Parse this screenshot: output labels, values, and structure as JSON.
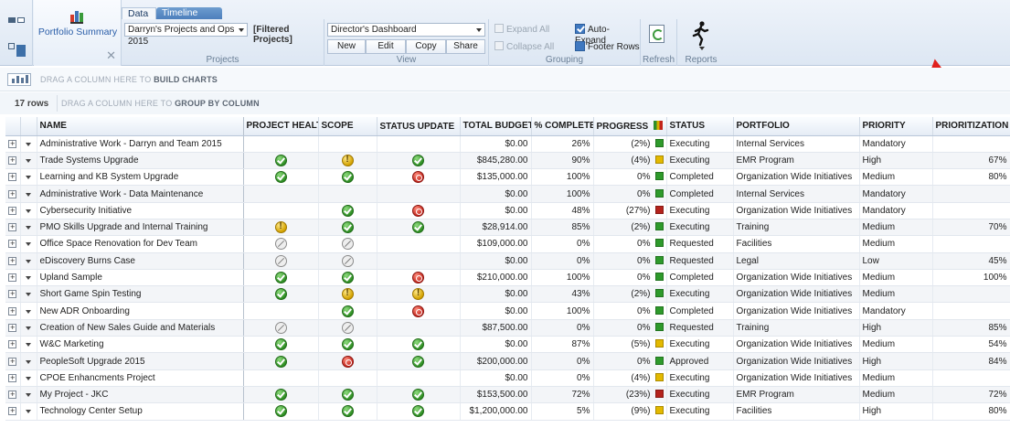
{
  "ribbon": {
    "portfolio_tab_label": "Portfolio Summary",
    "tabs": [
      "Data",
      "Timeline"
    ],
    "project_filter_value": "Darryn's Projects and Ops 2015",
    "filtered_label": "[Filtered Projects]",
    "projects_group_label": "Projects",
    "view_value": "Director's Dashboard",
    "view_buttons": [
      "New",
      "Edit",
      "Copy",
      "Share"
    ],
    "view_group_label": "View",
    "expand_all": "Expand All",
    "collapse_all": "Collapse All",
    "auto_expand": "Auto-Expand",
    "footer_rows": "Footer Rows",
    "grouping_label": "Grouping",
    "refresh_label": "Refresh",
    "reports_label": "Reports"
  },
  "zones": {
    "chart_prefix": "DRAG A COLUMN HERE TO ",
    "chart_bold": "BUILD CHARTS",
    "rows_count": "17 rows",
    "group_prefix": "DRAG A COLUMN HERE TO ",
    "group_bold": "GROUP BY COLUMN"
  },
  "columns": [
    "NAME",
    "PROJECT HEALTH",
    "SCOPE",
    "STATUS UPDATE",
    "TOTAL BUDGET",
    "% COMPLETE",
    "PROGRESS",
    "STATUS",
    "PORTFOLIO",
    "PRIORITY",
    "PRIORITIZATION"
  ],
  "icon_legend": {
    "ok": "check-circle-icon",
    "warn": "warning-circle-icon",
    "stop": "stop-circle-icon",
    "na": "not-applicable-icon"
  },
  "progress_colors": {
    "green": "#2e9a2b",
    "yellow": "#e3b900",
    "red": "#b4231c"
  },
  "rows": [
    {
      "name": "Administrative Work - Darryn and Team 2015",
      "health": "",
      "scope": "",
      "update": "",
      "budget": "$0.00",
      "complete": "26%",
      "progress": "(2%)",
      "pcolor": "green",
      "status": "Executing",
      "portfolio": "Internal Services",
      "priority": "Mandatory",
      "prioritization": ""
    },
    {
      "name": "Trade Systems Upgrade",
      "health": "ok",
      "scope": "warn",
      "update": "ok",
      "budget": "$845,280.00",
      "complete": "90%",
      "progress": "(4%)",
      "pcolor": "yellow",
      "status": "Executing",
      "portfolio": "EMR Program",
      "priority": "High",
      "prioritization": "67%"
    },
    {
      "name": "Learning and KB System Upgrade",
      "health": "ok",
      "scope": "ok",
      "update": "stop",
      "budget": "$135,000.00",
      "complete": "100%",
      "progress": "0%",
      "pcolor": "green",
      "status": "Completed",
      "portfolio": "Organization Wide Initiatives",
      "priority": "Medium",
      "prioritization": "80%"
    },
    {
      "name": "Administrative Work - Data Maintenance",
      "health": "",
      "scope": "",
      "update": "",
      "budget": "$0.00",
      "complete": "100%",
      "progress": "0%",
      "pcolor": "green",
      "status": "Completed",
      "portfolio": "Internal Services",
      "priority": "Mandatory",
      "prioritization": ""
    },
    {
      "name": "Cybersecurity Initiative",
      "health": "",
      "scope": "ok",
      "update": "stop",
      "budget": "$0.00",
      "complete": "48%",
      "progress": "(27%)",
      "pcolor": "red",
      "status": "Executing",
      "portfolio": "Organization Wide Initiatives",
      "priority": "Mandatory",
      "prioritization": ""
    },
    {
      "name": "PMO Skills Upgrade and Internal Training",
      "health": "warn",
      "scope": "ok",
      "update": "ok",
      "budget": "$28,914.00",
      "complete": "85%",
      "progress": "(2%)",
      "pcolor": "green",
      "status": "Executing",
      "portfolio": "Training",
      "priority": "Medium",
      "prioritization": "70%"
    },
    {
      "name": "Office Space Renovation for Dev Team",
      "health": "na",
      "scope": "na",
      "update": "",
      "budget": "$109,000.00",
      "complete": "0%",
      "progress": "0%",
      "pcolor": "green",
      "status": "Requested",
      "portfolio": "Facilities",
      "priority": "Medium",
      "prioritization": ""
    },
    {
      "name": "eDiscovery Burns Case",
      "health": "na",
      "scope": "na",
      "update": "",
      "budget": "$0.00",
      "complete": "0%",
      "progress": "0%",
      "pcolor": "green",
      "status": "Requested",
      "portfolio": "Legal",
      "priority": "Low",
      "prioritization": "45%"
    },
    {
      "name": "Upland Sample",
      "health": "ok",
      "scope": "ok",
      "update": "stop",
      "budget": "$210,000.00",
      "complete": "100%",
      "progress": "0%",
      "pcolor": "green",
      "status": "Completed",
      "portfolio": "Organization Wide Initiatives",
      "priority": "Medium",
      "prioritization": "100%"
    },
    {
      "name": "Short Game Spin Testing",
      "health": "ok",
      "scope": "warn",
      "update": "warn",
      "budget": "$0.00",
      "complete": "43%",
      "progress": "(2%)",
      "pcolor": "green",
      "status": "Executing",
      "portfolio": "Organization Wide Initiatives",
      "priority": "Medium",
      "prioritization": ""
    },
    {
      "name": "New ADR Onboarding",
      "health": "",
      "scope": "ok",
      "update": "stop",
      "budget": "$0.00",
      "complete": "100%",
      "progress": "0%",
      "pcolor": "green",
      "status": "Completed",
      "portfolio": "Organization Wide Initiatives",
      "priority": "Mandatory",
      "prioritization": ""
    },
    {
      "name": "Creation of New Sales Guide and Materials",
      "health": "na",
      "scope": "na",
      "update": "",
      "budget": "$87,500.00",
      "complete": "0%",
      "progress": "0%",
      "pcolor": "green",
      "status": "Requested",
      "portfolio": "Training",
      "priority": "High",
      "prioritization": "85%"
    },
    {
      "name": "W&C Marketing",
      "health": "ok",
      "scope": "ok",
      "update": "ok",
      "budget": "$0.00",
      "complete": "87%",
      "progress": "(5%)",
      "pcolor": "yellow",
      "status": "Executing",
      "portfolio": "Organization Wide Initiatives",
      "priority": "Medium",
      "prioritization": "54%"
    },
    {
      "name": "PeopleSoft Upgrade 2015",
      "health": "ok",
      "scope": "stop",
      "update": "ok",
      "budget": "$200,000.00",
      "complete": "0%",
      "progress": "0%",
      "pcolor": "green",
      "status": "Approved",
      "portfolio": "Organization Wide Initiatives",
      "priority": "High",
      "prioritization": "84%"
    },
    {
      "name": "CPOE Enhancments Project",
      "health": "",
      "scope": "",
      "update": "",
      "budget": "$0.00",
      "complete": "0%",
      "progress": "(4%)",
      "pcolor": "yellow",
      "status": "Executing",
      "portfolio": "Organization Wide Initiatives",
      "priority": "Medium",
      "prioritization": ""
    },
    {
      "name": "My Project - JKC",
      "health": "ok",
      "scope": "ok",
      "update": "ok",
      "budget": "$153,500.00",
      "complete": "72%",
      "progress": "(23%)",
      "pcolor": "red",
      "status": "Executing",
      "portfolio": "EMR Program",
      "priority": "Medium",
      "prioritization": "72%"
    },
    {
      "name": "Technology Center Setup",
      "health": "ok",
      "scope": "ok",
      "update": "ok",
      "budget": "$1,200,000.00",
      "complete": "5%",
      "progress": "(9%)",
      "pcolor": "yellow",
      "status": "Executing",
      "portfolio": "Facilities",
      "priority": "High",
      "prioritization": "80%"
    }
  ]
}
